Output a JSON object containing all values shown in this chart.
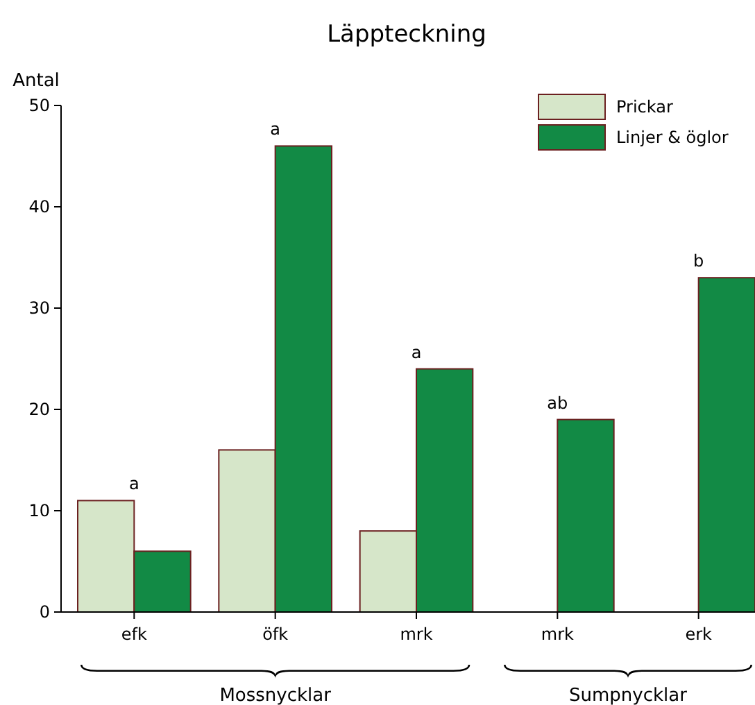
{
  "chart_data": {
    "type": "bar",
    "title": "Läppteckning",
    "ylabel": "Antal",
    "categories": [
      "efk",
      "öfk",
      "mrk",
      "mrk",
      "erk"
    ],
    "series": [
      {
        "name": "Prickar",
        "color": "#d6e6c9",
        "values": [
          11,
          16,
          8,
          null,
          null
        ]
      },
      {
        "name": "Linjer & öglor",
        "color": "#128a45",
        "values": [
          6,
          46,
          24,
          19,
          33
        ]
      }
    ],
    "ylim": [
      0,
      50
    ],
    "yticks": [
      0,
      10,
      20,
      30,
      40,
      50
    ],
    "grid": false,
    "legend": "top right",
    "annotations": [
      "a",
      "a",
      "a",
      "ab",
      "b",
      "Mossnycklar",
      "Sumpnycklar"
    ]
  }
}
